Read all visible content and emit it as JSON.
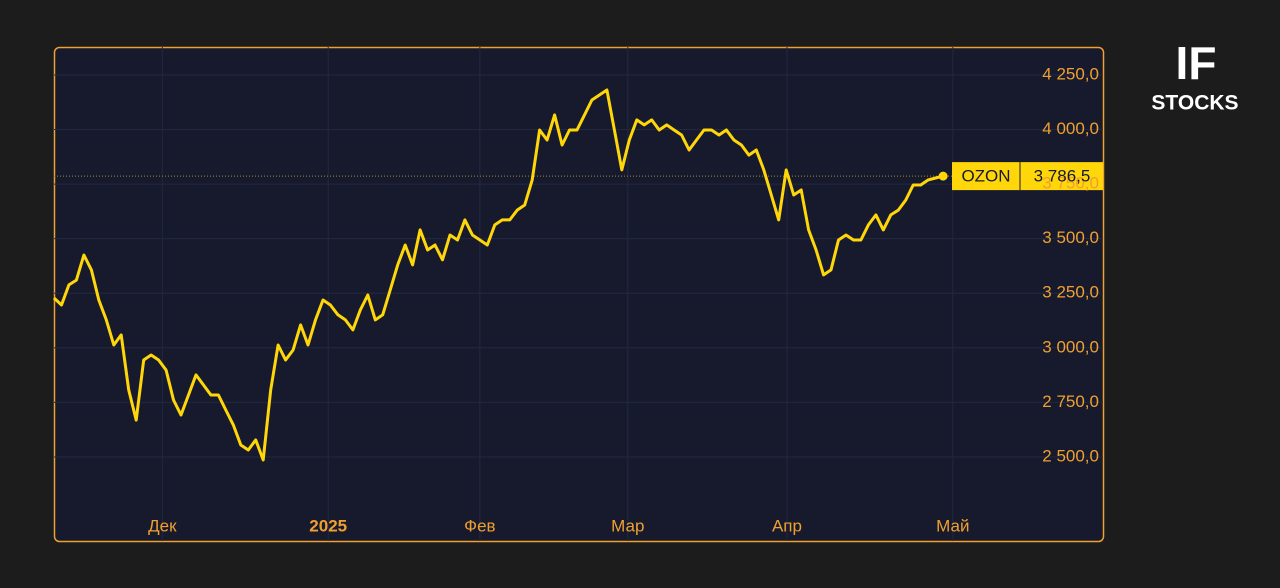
{
  "chart_data": {
    "type": "line",
    "xlim": [
      0,
      140.4
    ],
    "xticks": [
      {
        "value": 14.5,
        "label": "Дек"
      },
      {
        "value": 36.7,
        "label": "2025"
      },
      {
        "value": 57.0,
        "label": "Фев"
      },
      {
        "value": 76.8,
        "label": "Мар"
      },
      {
        "value": 98.1,
        "label": "Апр"
      },
      {
        "value": 120.3,
        "label": "Май"
      }
    ],
    "ylim": [
      2115,
      4378
    ],
    "yticks": [
      {
        "value": 2500,
        "label": "2 500,0"
      },
      {
        "value": 2750,
        "label": "2 750,0"
      },
      {
        "value": 3000,
        "label": "3 000,0"
      },
      {
        "value": 3250,
        "label": "3 250,0"
      },
      {
        "value": 3500,
        "label": "3 500,0"
      },
      {
        "value": 3750,
        "label": "3 750,0"
      },
      {
        "value": 4000,
        "label": "4 000,0"
      },
      {
        "value": 4250,
        "label": "4 250,0"
      }
    ],
    "grid": true,
    "series": [
      {
        "name": "OZON",
        "color": "#ffd60a",
        "values": [
          3228,
          3196,
          3288,
          3310,
          3425,
          3357,
          3219,
          3128,
          3013,
          3059,
          2807,
          2669,
          2944,
          2967,
          2944,
          2898,
          2761,
          2692,
          2784,
          2876,
          2830,
          2784,
          2784,
          2715,
          2647,
          2555,
          2532,
          2578,
          2486,
          2807,
          3013,
          2944,
          2990,
          3105,
          3013,
          3128,
          3219,
          3196,
          3151,
          3128,
          3082,
          3173,
          3242,
          3128,
          3151,
          3265,
          3380,
          3471,
          3380,
          3540,
          3448,
          3471,
          3403,
          3517,
          3494,
          3586,
          3517,
          3494,
          3471,
          3563,
          3586,
          3586,
          3631,
          3654,
          3769,
          3998,
          3952,
          4067,
          3929,
          3998,
          3998,
          4067,
          4135,
          4158,
          4181,
          3998,
          3815,
          3952,
          4044,
          4021,
          4044,
          3998,
          4021,
          3998,
          3975,
          3906,
          3952,
          3998,
          3998,
          3975,
          3998,
          3952,
          3929,
          3883,
          3906,
          3815,
          3700,
          3586,
          3815,
          3700,
          3723,
          3540,
          3448,
          3334,
          3357,
          3494,
          3517,
          3494,
          3494,
          3563,
          3609,
          3540,
          3609,
          3631,
          3677,
          3746,
          3746,
          3769,
          3778,
          3786.5
        ],
        "value_labels": [
          null,
          null,
          null,
          null,
          null,
          null,
          null,
          null,
          null,
          null,
          null,
          null,
          null,
          null,
          null,
          null,
          null,
          null,
          null,
          null,
          null,
          null,
          null,
          null,
          null,
          null,
          null,
          null,
          null,
          null,
          null,
          null,
          null,
          null,
          null,
          null,
          null,
          null,
          null,
          null,
          null,
          null,
          null,
          null,
          null,
          null,
          null,
          null,
          null,
          null,
          null,
          null,
          null,
          null,
          null,
          null,
          null,
          null,
          null,
          null,
          null,
          null,
          null,
          null,
          null,
          null,
          null,
          null,
          null,
          null,
          null,
          null,
          null,
          null,
          null,
          null,
          null,
          null,
          null,
          null,
          null,
          null,
          null,
          null,
          null,
          null,
          null,
          null,
          null,
          null,
          null,
          null,
          null,
          null,
          null,
          null,
          null,
          null,
          null,
          null,
          null,
          null,
          null,
          null,
          null,
          null,
          null,
          null,
          null,
          null,
          null,
          null,
          null,
          null,
          null,
          null,
          null,
          null,
          null,
          "3 786,5"
        ]
      }
    ]
  },
  "logo": {
    "top": "IF",
    "bottom": "STOCKS"
  }
}
